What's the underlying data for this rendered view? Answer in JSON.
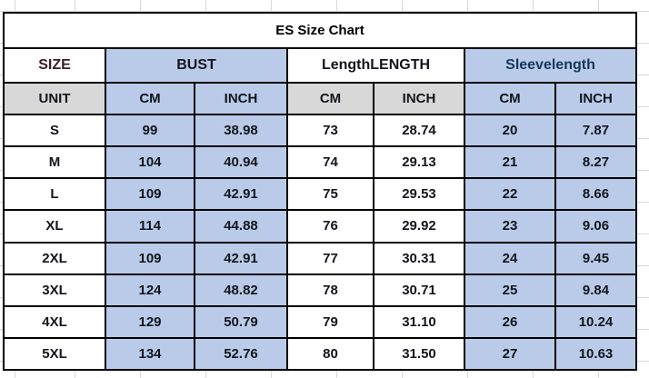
{
  "colors": {
    "cell_blue": "#b9cbe8",
    "cell_gray": "#d8d8d8",
    "border": "#000000",
    "gridline": "#d9d9d9",
    "text_dark": "#13151c",
    "text_maroon": "#3d1c26",
    "text_navy": "#16365c",
    "background": "#ffffff"
  },
  "chart_data": {
    "type": "table",
    "title": "ES Size Chart",
    "column_groups": [
      {
        "label": "SIZE",
        "bg": "white",
        "color": "maroon",
        "span": 1
      },
      {
        "label": "BUST",
        "bg": "blue",
        "color": "dark",
        "span": 2
      },
      {
        "label": "LengthLENGTH",
        "bg": "white",
        "color": "dark",
        "span": 2
      },
      {
        "label": "Sleevelength",
        "bg": "blue",
        "color": "navy",
        "span": 2
      }
    ],
    "unit_row": {
      "labels": [
        "UNIT",
        "CM",
        "INCH",
        "CM",
        "INCH",
        "CM",
        "INCH"
      ],
      "bg": [
        "gray",
        "blue",
        "blue",
        "gray",
        "gray",
        "blue",
        "blue"
      ]
    },
    "row_bg": [
      "white",
      "blue",
      "blue",
      "white",
      "white",
      "blue",
      "blue"
    ],
    "rows": [
      [
        "S",
        "99",
        "38.98",
        "73",
        "28.74",
        "20",
        "7.87"
      ],
      [
        "M",
        "104",
        "40.94",
        "74",
        "29.13",
        "21",
        "8.27"
      ],
      [
        "L",
        "109",
        "42.91",
        "75",
        "29.53",
        "22",
        "8.66"
      ],
      [
        "XL",
        "114",
        "44.88",
        "76",
        "29.92",
        "23",
        "9.06"
      ],
      [
        "2XL",
        "109",
        "42.91",
        "77",
        "30.31",
        "24",
        "9.45"
      ],
      [
        "3XL",
        "124",
        "48.82",
        "78",
        "30.71",
        "25",
        "9.84"
      ],
      [
        "4XL",
        "129",
        "50.79",
        "79",
        "31.10",
        "26",
        "10.24"
      ],
      [
        "5XL",
        "134",
        "52.76",
        "80",
        "31.50",
        "27",
        "10.63"
      ]
    ]
  }
}
